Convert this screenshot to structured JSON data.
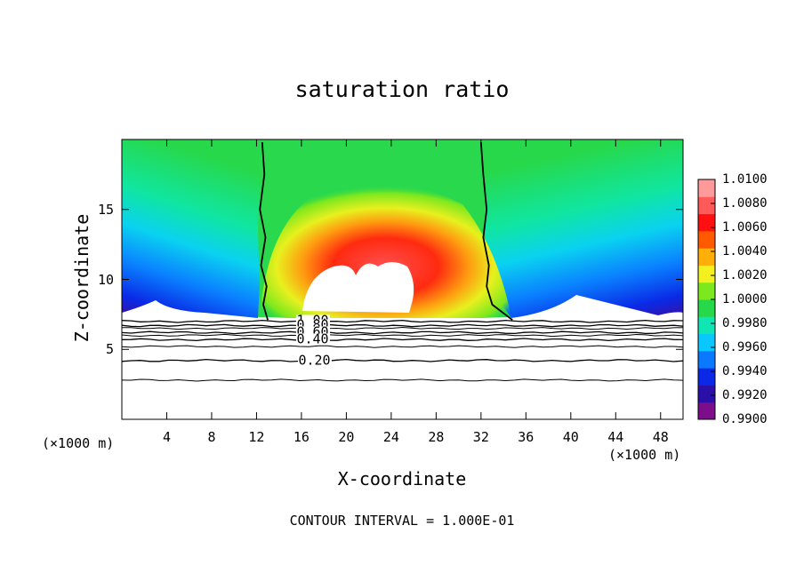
{
  "chart_data": {
    "type": "heatmap",
    "title": "saturation ratio",
    "xlabel": "X-coordinate",
    "ylabel": "Z-coordinate",
    "x_unit": "(×1000 m)",
    "xlim": [
      0,
      50
    ],
    "ylim": [
      0,
      20
    ],
    "x_ticks": [
      4,
      8,
      12,
      16,
      20,
      24,
      28,
      32,
      36,
      40,
      44,
      48
    ],
    "y_ticks": [
      5,
      10,
      15
    ],
    "footer": "CONTOUR INTERVAL = 1.000E-01",
    "colorbar": {
      "levels": [
        "0.9900",
        "0.9920",
        "0.9940",
        "0.9960",
        "0.9980",
        "1.0000",
        "1.0020",
        "1.0040",
        "1.0060",
        "1.0080",
        "1.0100"
      ],
      "colors": [
        "#7c0e8c",
        "#2a0fa8",
        "#0a28e6",
        "#0a78ff",
        "#0ac8ff",
        "#10e6b4",
        "#27d84a",
        "#7ce81e",
        "#f2f01e",
        "#ffae0a",
        "#ff5a00",
        "#ff1010",
        "#ff5a5a",
        "#ff9a9a"
      ]
    },
    "contour_lines": [
      {
        "label": "1.00",
        "z": 7.0
      },
      {
        "label": "0.80",
        "z": 6.7
      },
      {
        "label": "0.60",
        "z": 6.2
      },
      {
        "label": "0.40",
        "z": 5.7
      },
      {
        "label": "0.20",
        "z": 4.2
      }
    ],
    "extra_contours_z": [
      6.5,
      6.0,
      5.2,
      2.8
    ],
    "saturation_boundary": {
      "level": "1.00",
      "left_x": [
        12.5,
        12.7,
        12.3,
        12.8,
        12.4,
        12.9,
        12.6,
        13.0
      ],
      "right_x": [
        32.0,
        32.2,
        32.5,
        32.2,
        32.7,
        32.5,
        33.0,
        34.8
      ],
      "z": [
        19.8,
        17.5,
        15.0,
        13.0,
        11.0,
        9.5,
        8.2,
        7.1
      ]
    }
  }
}
